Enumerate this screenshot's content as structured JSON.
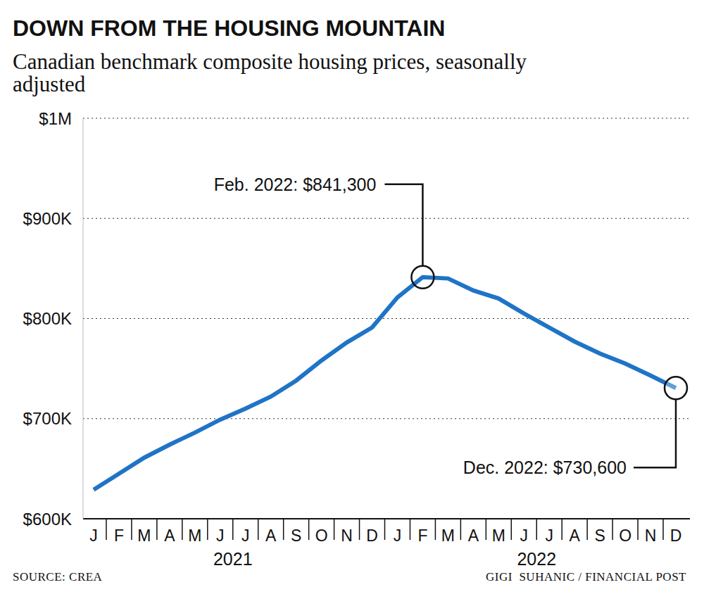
{
  "chart_data": {
    "type": "line",
    "title": "DOWN FROM THE HOUSING MOUNTAIN",
    "subtitle": "Canadian benchmark composite housing prices, seasonally adjusted",
    "categories": [
      "J",
      "F",
      "M",
      "A",
      "M",
      "J",
      "J",
      "A",
      "S",
      "O",
      "N",
      "D",
      "J",
      "F",
      "M",
      "A",
      "M",
      "J",
      "J",
      "A",
      "S",
      "O",
      "N",
      "D"
    ],
    "years": [
      "2021",
      "2022"
    ],
    "values": [
      629000,
      645000,
      661000,
      674000,
      686000,
      699000,
      710000,
      722000,
      738000,
      758000,
      776000,
      791000,
      821000,
      841300,
      840000,
      828000,
      820000,
      805000,
      791000,
      777000,
      765000,
      755000,
      743000,
      730600
    ],
    "color": "#1f74c6",
    "ylim": [
      600000,
      1000000
    ],
    "yticks": [
      {
        "value": 600000,
        "label": "$600K"
      },
      {
        "value": 700000,
        "label": "$700K"
      },
      {
        "value": 800000,
        "label": "$800K"
      },
      {
        "value": 900000,
        "label": "$900K"
      },
      {
        "value": 1000000,
        "label": "$1M"
      }
    ],
    "grid": true,
    "annotations": [
      {
        "label": "Feb. 2022: $841,300",
        "value": 841300
      },
      {
        "label": "Dec. 2022: $730,600",
        "value": 730600
      }
    ],
    "source": "SOURCE: CREA",
    "credit": "GIGI  SUHANIC / FINANCIAL POST"
  }
}
